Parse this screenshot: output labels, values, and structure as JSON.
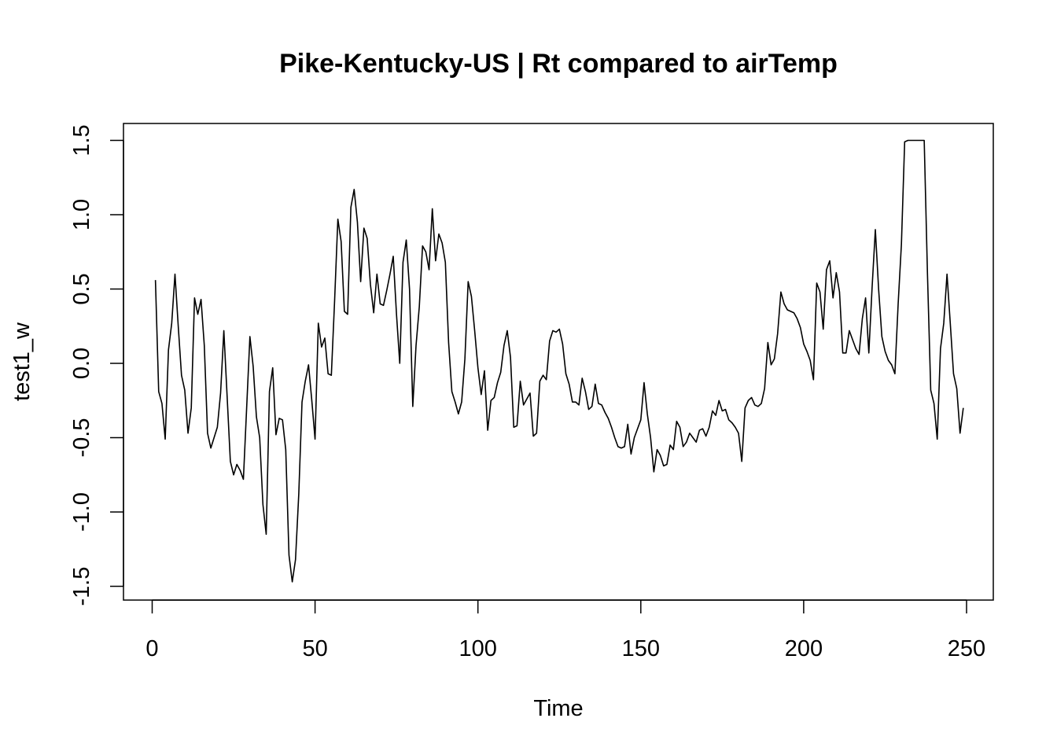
{
  "chart_data": {
    "type": "line",
    "title": "Pike-Kentucky-US | Rt compared to airTemp",
    "xlabel": "Time",
    "ylabel": "test1_w",
    "xlim": [
      1,
      248
    ],
    "ylim": [
      -1.5,
      1.5
    ],
    "x_ticks": [
      0,
      50,
      100,
      150,
      200,
      250
    ],
    "x_tick_labels": [
      "0",
      "50",
      "100",
      "150",
      "200",
      "250"
    ],
    "y_ticks": [
      -1.5,
      -1.0,
      -0.5,
      0.0,
      0.5,
      1.0,
      1.5
    ],
    "y_tick_labels": [
      "-1.5",
      "-1.0",
      "-0.5",
      "0.0",
      "0.5",
      "1.0",
      "1.5"
    ],
    "grid": false,
    "series": [
      {
        "values": [
          0.56,
          -0.19,
          -0.27,
          -0.51,
          0.09,
          0.27,
          0.6,
          0.25,
          -0.08,
          -0.18,
          -0.47,
          -0.3,
          0.44,
          0.33,
          0.43,
          0.12,
          -0.47,
          -0.57,
          -0.5,
          -0.43,
          -0.2,
          0.22,
          -0.22,
          -0.66,
          -0.75,
          -0.68,
          -0.72,
          -0.78,
          -0.3,
          0.18,
          -0.02,
          -0.36,
          -0.5,
          -0.95,
          -1.15,
          -0.19,
          -0.03,
          -0.48,
          -0.37,
          -0.38,
          -0.58,
          -1.29,
          -1.47,
          -1.32,
          -0.88,
          -0.26,
          -0.12,
          -0.01,
          -0.25,
          -0.51,
          0.27,
          0.11,
          0.17,
          -0.07,
          -0.08,
          0.42,
          0.97,
          0.82,
          0.35,
          0.33,
          1.05,
          1.17,
          0.95,
          0.55,
          0.91,
          0.84,
          0.53,
          0.34,
          0.6,
          0.4,
          0.39,
          0.49,
          0.6,
          0.72,
          0.33,
          0.0,
          0.68,
          0.83,
          0.5,
          -0.29,
          0.12,
          0.38,
          0.79,
          0.75,
          0.63,
          1.04,
          0.69,
          0.87,
          0.81,
          0.68,
          0.14,
          -0.19,
          -0.26,
          -0.34,
          -0.26,
          0.03,
          0.55,
          0.45,
          0.22,
          -0.03,
          -0.21,
          -0.05,
          -0.45,
          -0.25,
          -0.23,
          -0.13,
          -0.06,
          0.12,
          0.22,
          0.04,
          -0.43,
          -0.42,
          -0.12,
          -0.28,
          -0.24,
          -0.2,
          -0.49,
          -0.47,
          -0.12,
          -0.08,
          -0.11,
          0.15,
          0.22,
          0.21,
          0.23,
          0.13,
          -0.07,
          -0.14,
          -0.26,
          -0.26,
          -0.28,
          -0.1,
          -0.19,
          -0.31,
          -0.29,
          -0.14,
          -0.27,
          -0.28,
          -0.33,
          -0.37,
          -0.43,
          -0.5,
          -0.56,
          -0.57,
          -0.56,
          -0.41,
          -0.61,
          -0.5,
          -0.44,
          -0.38,
          -0.13,
          -0.34,
          -0.5,
          -0.73,
          -0.58,
          -0.62,
          -0.69,
          -0.68,
          -0.55,
          -0.58,
          -0.39,
          -0.43,
          -0.56,
          -0.53,
          -0.47,
          -0.5,
          -0.53,
          -0.45,
          -0.44,
          -0.49,
          -0.43,
          -0.32,
          -0.35,
          -0.25,
          -0.32,
          -0.31,
          -0.38,
          -0.4,
          -0.43,
          -0.47,
          -0.66,
          -0.3,
          -0.25,
          -0.23,
          -0.28,
          -0.29,
          -0.27,
          -0.17,
          0.14,
          -0.01,
          0.03,
          0.2,
          0.48,
          0.4,
          0.36,
          0.35,
          0.34,
          0.3,
          0.24,
          0.13,
          0.08,
          0.02,
          -0.11,
          0.54,
          0.48,
          0.23,
          0.63,
          0.69,
          0.44,
          0.61,
          0.48,
          0.07,
          0.07,
          0.22,
          0.16,
          0.1,
          0.06,
          0.3,
          0.44,
          0.07,
          0.51,
          0.9,
          0.5,
          0.18,
          0.08,
          0.02,
          -0.01,
          -0.07,
          0.4,
          0.8,
          1.49,
          1.5,
          1.5,
          1.5,
          1.5,
          1.5,
          1.5,
          0.6,
          -0.18,
          -0.27,
          -0.51,
          0.1,
          0.27,
          0.6,
          0.27,
          -0.07,
          -0.17,
          -0.47,
          -0.3
        ]
      }
    ]
  }
}
